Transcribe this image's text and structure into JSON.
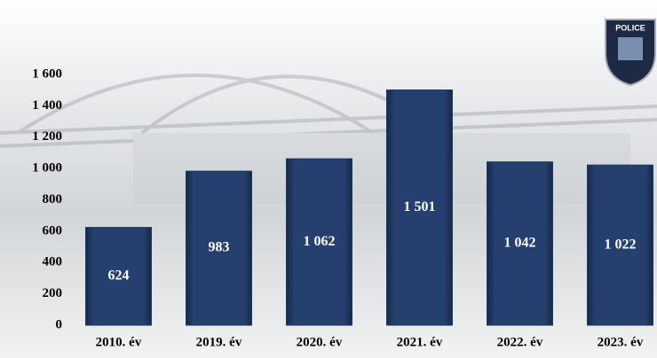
{
  "chart_data": {
    "type": "bar",
    "categories": [
      "2010. év",
      "2019. év",
      "2020. év",
      "2021. év",
      "2022. év",
      "2023. év"
    ],
    "values": [
      624,
      983,
      1062,
      1501,
      1042,
      1022
    ],
    "value_labels": [
      "624",
      "983",
      "1 062",
      "1 501",
      "1 042",
      "1 022"
    ],
    "color": "#1f3864",
    "ylim": [
      0,
      1600
    ],
    "yticks": [
      0,
      200,
      400,
      600,
      800,
      {
        "value": 1000,
        "label": "1 000"
      },
      {
        "value": 1200,
        "label": "1 200"
      },
      {
        "value": 1400,
        "label": "1 400"
      },
      {
        "value": 1600,
        "label": "1 600"
      }
    ],
    "grid": false,
    "badge_text": "POLICE"
  }
}
